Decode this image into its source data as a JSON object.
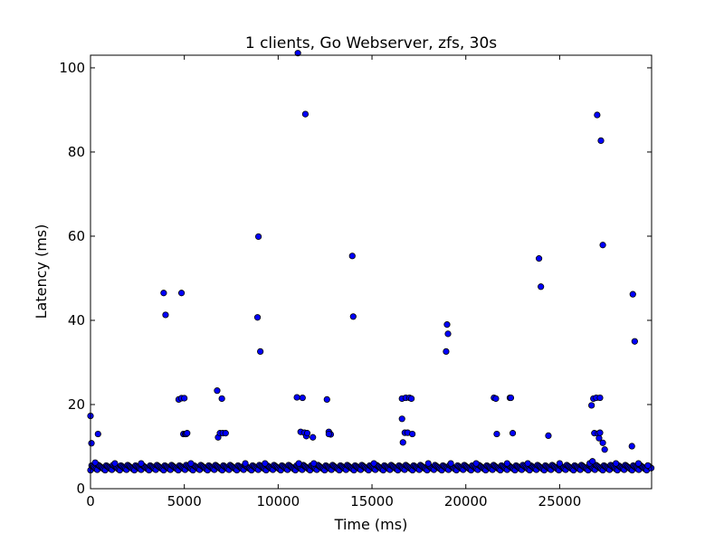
{
  "chart_data": {
    "type": "scatter",
    "title": "1 clients, Go Webserver, zfs, 30s",
    "xlabel": "Time (ms)",
    "ylabel": "Latency (ms)",
    "xlim": [
      0,
      29900
    ],
    "ylim": [
      0,
      103
    ],
    "xticks": [
      0,
      5000,
      10000,
      15000,
      20000,
      25000
    ],
    "yticks": [
      0,
      20,
      40,
      60,
      80,
      100
    ],
    "grid": false,
    "marker_color": "#0000ff",
    "marker_edge_color": "#000000",
    "baseline": {
      "x_start": 0,
      "x_end": 29900,
      "x_step": 60,
      "y_min": 4.4,
      "y_max": 5.6
    },
    "series": [
      {
        "name": "",
        "points": [
          [
            0,
            17.3
          ],
          [
            50,
            10.8
          ],
          [
            250,
            6.2
          ],
          [
            400,
            13.0
          ],
          [
            1300,
            6.0
          ],
          [
            2700,
            6.0
          ],
          [
            3900,
            46.5
          ],
          [
            4000,
            41.3
          ],
          [
            4700,
            21.2
          ],
          [
            4850,
            46.5
          ],
          [
            4850,
            21.5
          ],
          [
            4950,
            13.0
          ],
          [
            5000,
            21.5
          ],
          [
            5050,
            13.0
          ],
          [
            5100,
            13.0
          ],
          [
            5150,
            13.2
          ],
          [
            5350,
            6.0
          ],
          [
            6750,
            23.3
          ],
          [
            6800,
            12.2
          ],
          [
            6900,
            13.2
          ],
          [
            7000,
            21.4
          ],
          [
            7050,
            13.2
          ],
          [
            7200,
            13.2
          ],
          [
            8250,
            6.0
          ],
          [
            8900,
            40.7
          ],
          [
            8950,
            59.9
          ],
          [
            9050,
            32.6
          ],
          [
            9300,
            6.0
          ],
          [
            11000,
            21.7
          ],
          [
            11050,
            103.5
          ],
          [
            11100,
            6.0
          ],
          [
            11200,
            13.5
          ],
          [
            11300,
            21.6
          ],
          [
            11400,
            13.3
          ],
          [
            11450,
            89.0
          ],
          [
            11500,
            12.5
          ],
          [
            11550,
            13.2
          ],
          [
            11850,
            12.2
          ],
          [
            11900,
            6.0
          ],
          [
            12600,
            21.2
          ],
          [
            12700,
            13.5
          ],
          [
            12800,
            12.9
          ],
          [
            12700,
            13.0
          ],
          [
            13950,
            55.3
          ],
          [
            14000,
            40.9
          ],
          [
            15100,
            6.0
          ],
          [
            16600,
            21.4
          ],
          [
            16600,
            16.6
          ],
          [
            16650,
            11.0
          ],
          [
            16750,
            13.3
          ],
          [
            16800,
            21.6
          ],
          [
            16900,
            13.3
          ],
          [
            17000,
            21.6
          ],
          [
            17100,
            21.4
          ],
          [
            17150,
            13.0
          ],
          [
            18000,
            6.0
          ],
          [
            18950,
            32.6
          ],
          [
            19000,
            39.0
          ],
          [
            19050,
            36.8
          ],
          [
            19200,
            6.0
          ],
          [
            20550,
            6.0
          ],
          [
            21500,
            21.6
          ],
          [
            21600,
            21.4
          ],
          [
            21650,
            13.0
          ],
          [
            22200,
            6.0
          ],
          [
            22350,
            21.6
          ],
          [
            22400,
            21.6
          ],
          [
            22500,
            13.2
          ],
          [
            23300,
            6.0
          ],
          [
            23900,
            54.7
          ],
          [
            24000,
            48.0
          ],
          [
            24400,
            12.6
          ],
          [
            25000,
            6.0
          ],
          [
            26600,
            6.0
          ],
          [
            26700,
            19.8
          ],
          [
            26750,
            6.5
          ],
          [
            26800,
            21.4
          ],
          [
            26850,
            13.2
          ],
          [
            26950,
            21.6
          ],
          [
            27000,
            88.8
          ],
          [
            27050,
            13.1
          ],
          [
            27100,
            12.0
          ],
          [
            27150,
            13.3
          ],
          [
            27150,
            21.6
          ],
          [
            27200,
            82.7
          ],
          [
            27300,
            57.9
          ],
          [
            27300,
            10.9
          ],
          [
            27400,
            9.3
          ],
          [
            28000,
            6.0
          ],
          [
            28850,
            10.1
          ],
          [
            28900,
            46.2
          ],
          [
            29000,
            35.0
          ],
          [
            29200,
            6.0
          ],
          [
            29700,
            5.5
          ]
        ]
      }
    ]
  }
}
